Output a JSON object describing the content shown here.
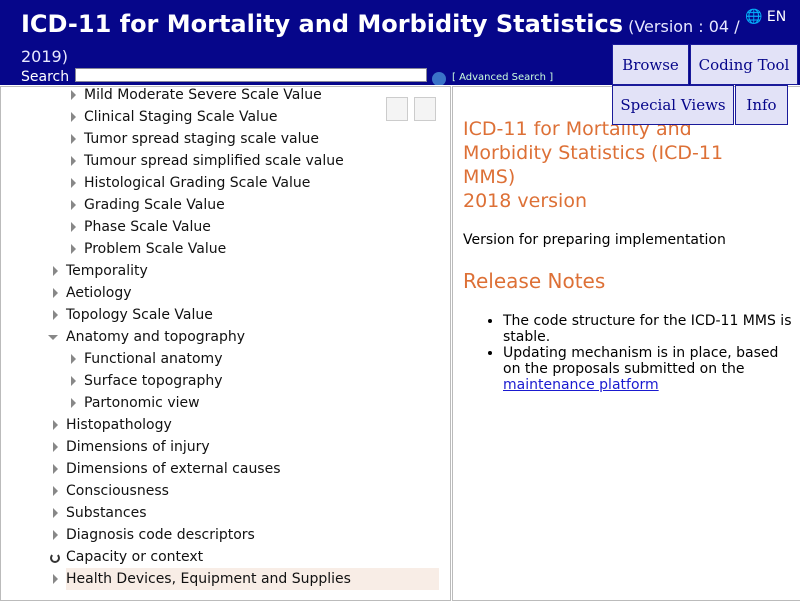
{
  "header": {
    "title": "ICD-11 for Mortality and Morbidity Statistics",
    "version": "(Version : 04 / 2019)",
    "search_label": "Search",
    "advanced_search": "[ Advanced Search ]",
    "language": "EN"
  },
  "tabs": [
    "Browse",
    "Coding Tool",
    "Special Views",
    "Info"
  ],
  "tree": [
    "Mild Moderate Severe Scale Value",
    "Clinical Staging Scale Value",
    "Tumor spread staging scale value",
    "Tumour spread simplified scale value",
    "Histological Grading Scale Value",
    "Grading Scale Value",
    "Phase Scale Value",
    "Problem Scale Value",
    "Temporality",
    "Aetiology",
    "Topology Scale Value",
    "Anatomy and topography",
    "Functional anatomy",
    "Surface topography",
    "Partonomic view",
    "Histopathology",
    "Dimensions of injury",
    "Dimensions of external causes",
    "Consciousness",
    "Substances",
    "Diagnosis code descriptors",
    "Capacity or context",
    "Health Devices, Equipment and Supplies"
  ],
  "content": {
    "title": "ICD-11 for Mortality and Morbidity Statistics (ICD-11 MMS)",
    "subtitle": "2018 version",
    "description": "Version for preparing implementation",
    "release_notes_heading": "Release Notes",
    "release_notes": [
      {
        "text": "The code structure for the ICD-11 MMS is stable."
      },
      {
        "text": "Updating mechanism is in place, based on the proposals submitted on the",
        "link": "maintenance platform"
      }
    ]
  }
}
